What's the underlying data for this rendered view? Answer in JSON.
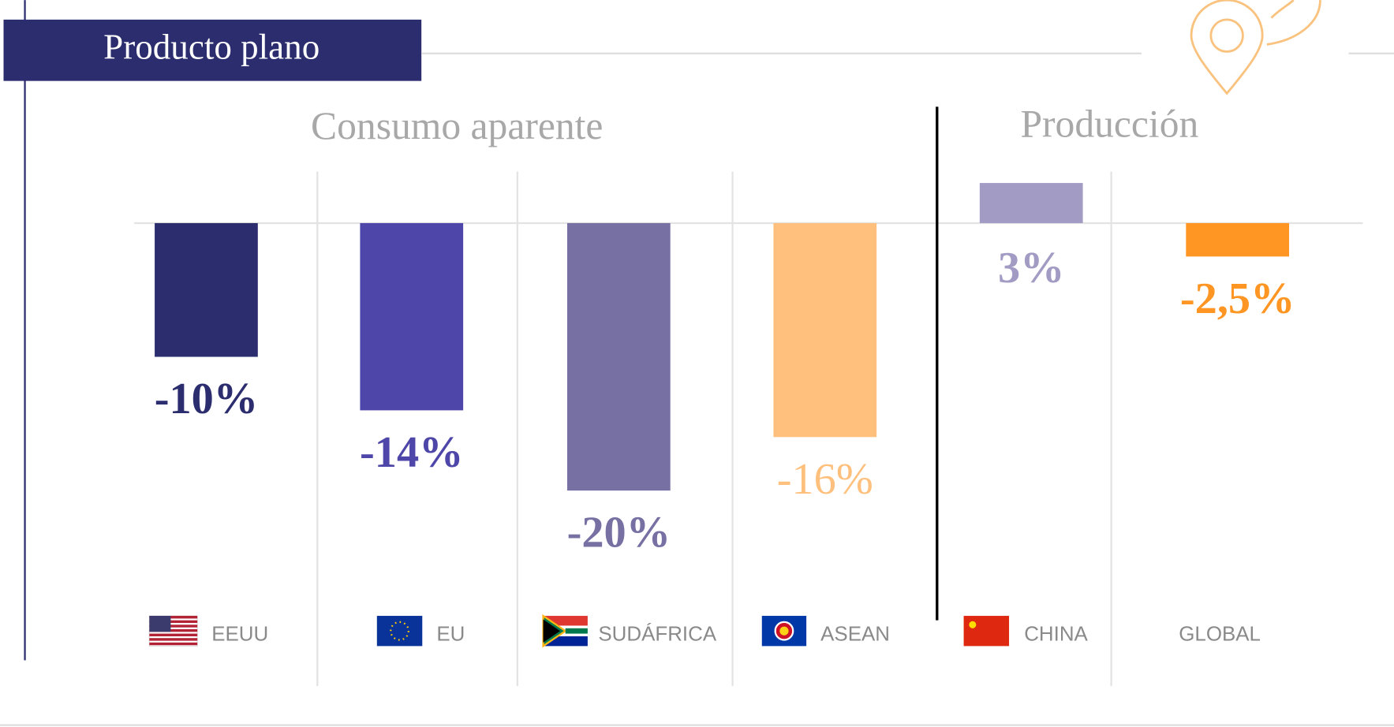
{
  "chart_data": {
    "type": "bar",
    "title": "Producto plano",
    "section_titles": [
      "Consumo aparente",
      "Producción"
    ],
    "categories": [
      "EEUU",
      "EU",
      "SUDÁFRICA",
      "ASEAN",
      "CHINA",
      "GLOBAL"
    ],
    "values": [
      -10,
      -14,
      -20,
      -16,
      3,
      -2.5
    ],
    "value_labels": [
      "-10%",
      "-14%",
      "-20%",
      "-16%",
      "3%",
      "-2,5%"
    ],
    "colors": [
      "#2b2d6e",
      "#4e46a8",
      "#7670a3",
      "#ffc07d",
      "#a29cc4",
      "#ff9624"
    ]
  }
}
